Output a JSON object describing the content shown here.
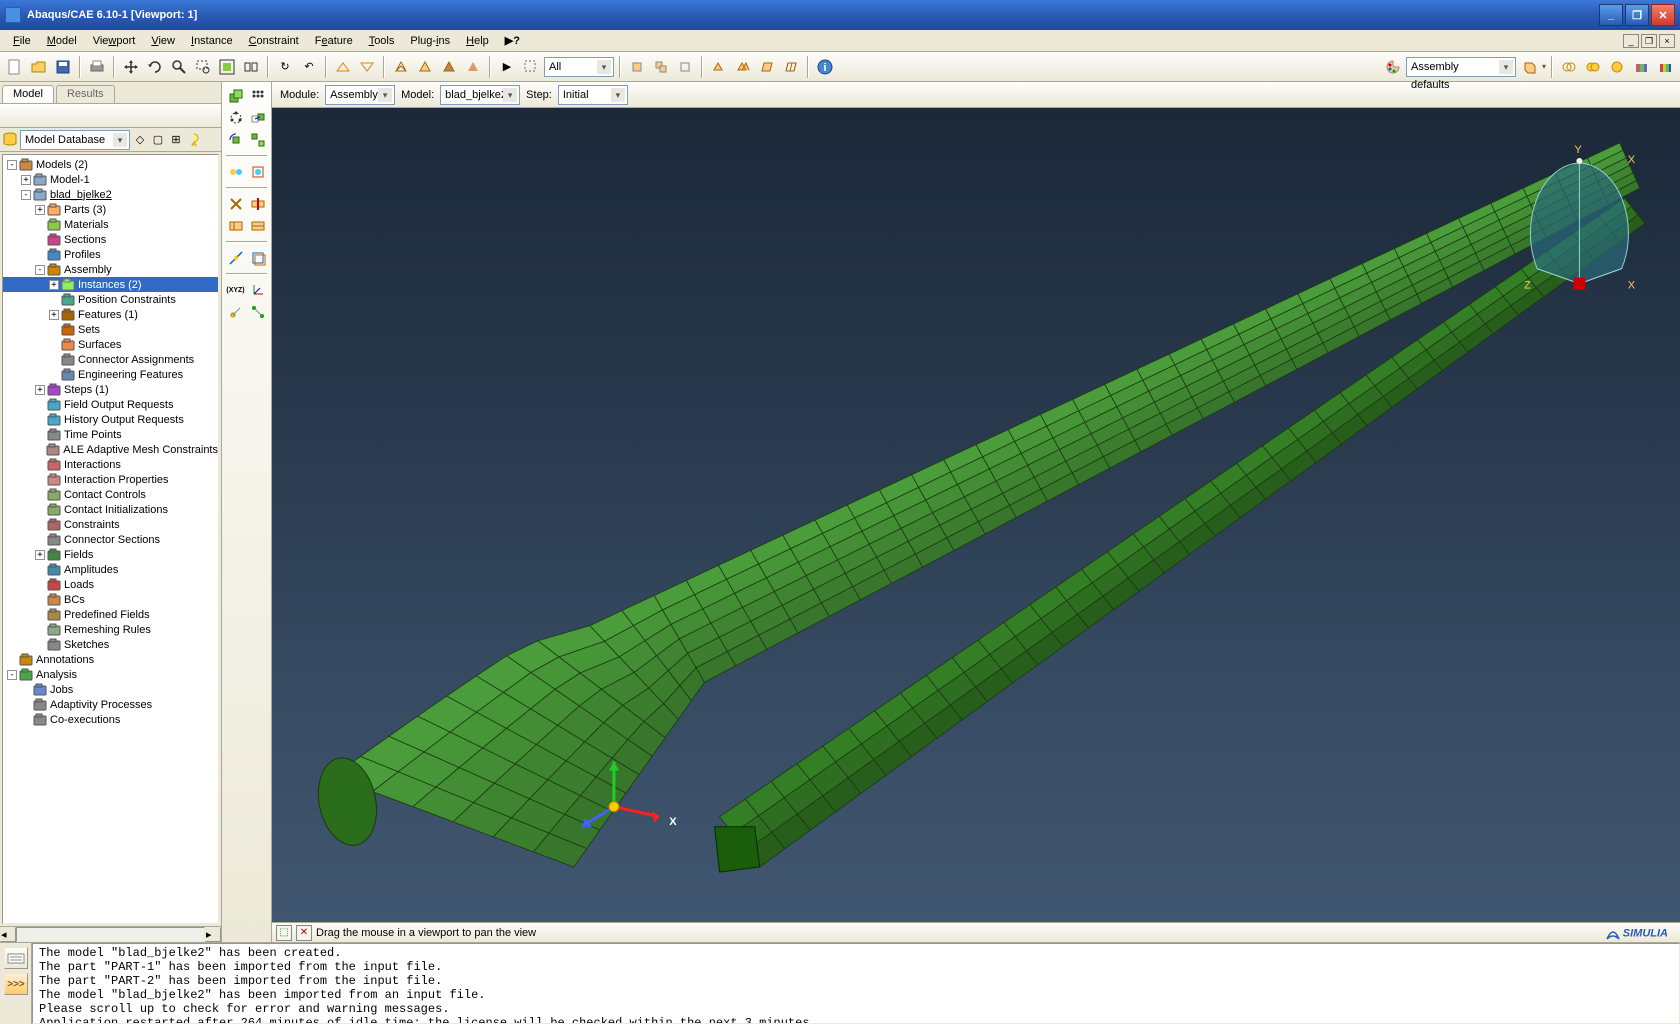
{
  "title": "Abaqus/CAE 6.10-1 [Viewport: 1]",
  "menubar": [
    "File",
    "Model",
    "Viewport",
    "View",
    "Instance",
    "Constraint",
    "Feature",
    "Tools",
    "Plug-ins",
    "Help"
  ],
  "context": {
    "module_label": "Module:",
    "module": "Assembly",
    "model_label": "Model:",
    "model": "blad_bjelke2",
    "step_label": "Step:",
    "step": "Initial"
  },
  "render_select": "Assembly defaults",
  "all_label": "All",
  "tabs": {
    "model": "Model",
    "results": "Results"
  },
  "dbselector": "Model Database",
  "tree": [
    {
      "d": 0,
      "exp": "-",
      "icon": "models",
      "label": "Models (2)"
    },
    {
      "d": 1,
      "exp": "+",
      "icon": "model",
      "label": "Model-1"
    },
    {
      "d": 1,
      "exp": "-",
      "icon": "model",
      "label": "blad_bjelke2",
      "ul": true
    },
    {
      "d": 2,
      "exp": "+",
      "icon": "parts",
      "label": "Parts (3)"
    },
    {
      "d": 2,
      "exp": " ",
      "icon": "materials",
      "label": "Materials"
    },
    {
      "d": 2,
      "exp": " ",
      "icon": "sections",
      "label": "Sections"
    },
    {
      "d": 2,
      "exp": " ",
      "icon": "profiles",
      "label": "Profiles"
    },
    {
      "d": 2,
      "exp": "-",
      "icon": "assembly",
      "label": "Assembly"
    },
    {
      "d": 3,
      "exp": "+",
      "icon": "instances",
      "label": "Instances (2)",
      "sel": true
    },
    {
      "d": 3,
      "exp": " ",
      "icon": "poscon",
      "label": "Position Constraints"
    },
    {
      "d": 3,
      "exp": "+",
      "icon": "features",
      "label": "Features (1)"
    },
    {
      "d": 3,
      "exp": " ",
      "icon": "sets",
      "label": "Sets"
    },
    {
      "d": 3,
      "exp": " ",
      "icon": "surfaces",
      "label": "Surfaces"
    },
    {
      "d": 3,
      "exp": " ",
      "icon": "connector",
      "label": "Connector Assignments"
    },
    {
      "d": 3,
      "exp": " ",
      "icon": "engfeat",
      "label": "Engineering Features"
    },
    {
      "d": 2,
      "exp": "+",
      "icon": "steps",
      "label": "Steps (1)"
    },
    {
      "d": 2,
      "exp": " ",
      "icon": "fieldout",
      "label": "Field Output Requests"
    },
    {
      "d": 2,
      "exp": " ",
      "icon": "histout",
      "label": "History Output Requests"
    },
    {
      "d": 2,
      "exp": " ",
      "icon": "timepts",
      "label": "Time Points"
    },
    {
      "d": 2,
      "exp": " ",
      "icon": "ale",
      "label": "ALE Adaptive Mesh Constraints"
    },
    {
      "d": 2,
      "exp": " ",
      "icon": "inter",
      "label": "Interactions"
    },
    {
      "d": 2,
      "exp": " ",
      "icon": "interprop",
      "label": "Interaction Properties"
    },
    {
      "d": 2,
      "exp": " ",
      "icon": "contactctrl",
      "label": "Contact Controls"
    },
    {
      "d": 2,
      "exp": " ",
      "icon": "contactinit",
      "label": "Contact Initializations"
    },
    {
      "d": 2,
      "exp": " ",
      "icon": "constraints",
      "label": "Constraints"
    },
    {
      "d": 2,
      "exp": " ",
      "icon": "connsect",
      "label": "Connector Sections"
    },
    {
      "d": 2,
      "exp": "+",
      "icon": "fields",
      "label": "Fields"
    },
    {
      "d": 2,
      "exp": " ",
      "icon": "amplitudes",
      "label": "Amplitudes"
    },
    {
      "d": 2,
      "exp": " ",
      "icon": "loads",
      "label": "Loads"
    },
    {
      "d": 2,
      "exp": " ",
      "icon": "bcs",
      "label": "BCs"
    },
    {
      "d": 2,
      "exp": " ",
      "icon": "predef",
      "label": "Predefined Fields"
    },
    {
      "d": 2,
      "exp": " ",
      "icon": "remesh",
      "label": "Remeshing Rules"
    },
    {
      "d": 2,
      "exp": " ",
      "icon": "sketches",
      "label": "Sketches"
    },
    {
      "d": 0,
      "exp": " ",
      "icon": "annot",
      "label": "Annotations"
    },
    {
      "d": 0,
      "exp": "-",
      "icon": "analysis",
      "label": "Analysis"
    },
    {
      "d": 1,
      "exp": " ",
      "icon": "jobs",
      "label": "Jobs"
    },
    {
      "d": 1,
      "exp": " ",
      "icon": "adapt",
      "label": "Adaptivity Processes"
    },
    {
      "d": 1,
      "exp": " ",
      "icon": "coexec",
      "label": "Co-executions"
    }
  ],
  "hint": "Drag the mouse in a viewport to pan the view",
  "simulia": "SIMULIA",
  "messages": "The model \"blad_bjelke2\" has been created.\nThe part \"PART-1\" has been imported from the input file.\nThe part \"PART-2\" has been imported from the input file.\nThe model \"blad_bjelke2\" has been imported from an input file.\nPlease scroll up to check for error and warning messages.\nApplication restarted after 264 minutes of idle time; the license will be checked within the next 3 minutes.",
  "viewport": {
    "mesh_fill": "#4a9d3a",
    "mesh_fill_dark": "#3a7d2a",
    "mesh_fill_light": "#5aad4a",
    "mesh_line": "#1a3a10",
    "bg_top": "#1a2838",
    "bg_bot": "#415670",
    "axis_x": "#ff2020",
    "axis_y": "#20d020",
    "axis_z": "#4060ff",
    "triad_labels": {
      "x": "X",
      "y": "Y",
      "z": "Z"
    }
  }
}
